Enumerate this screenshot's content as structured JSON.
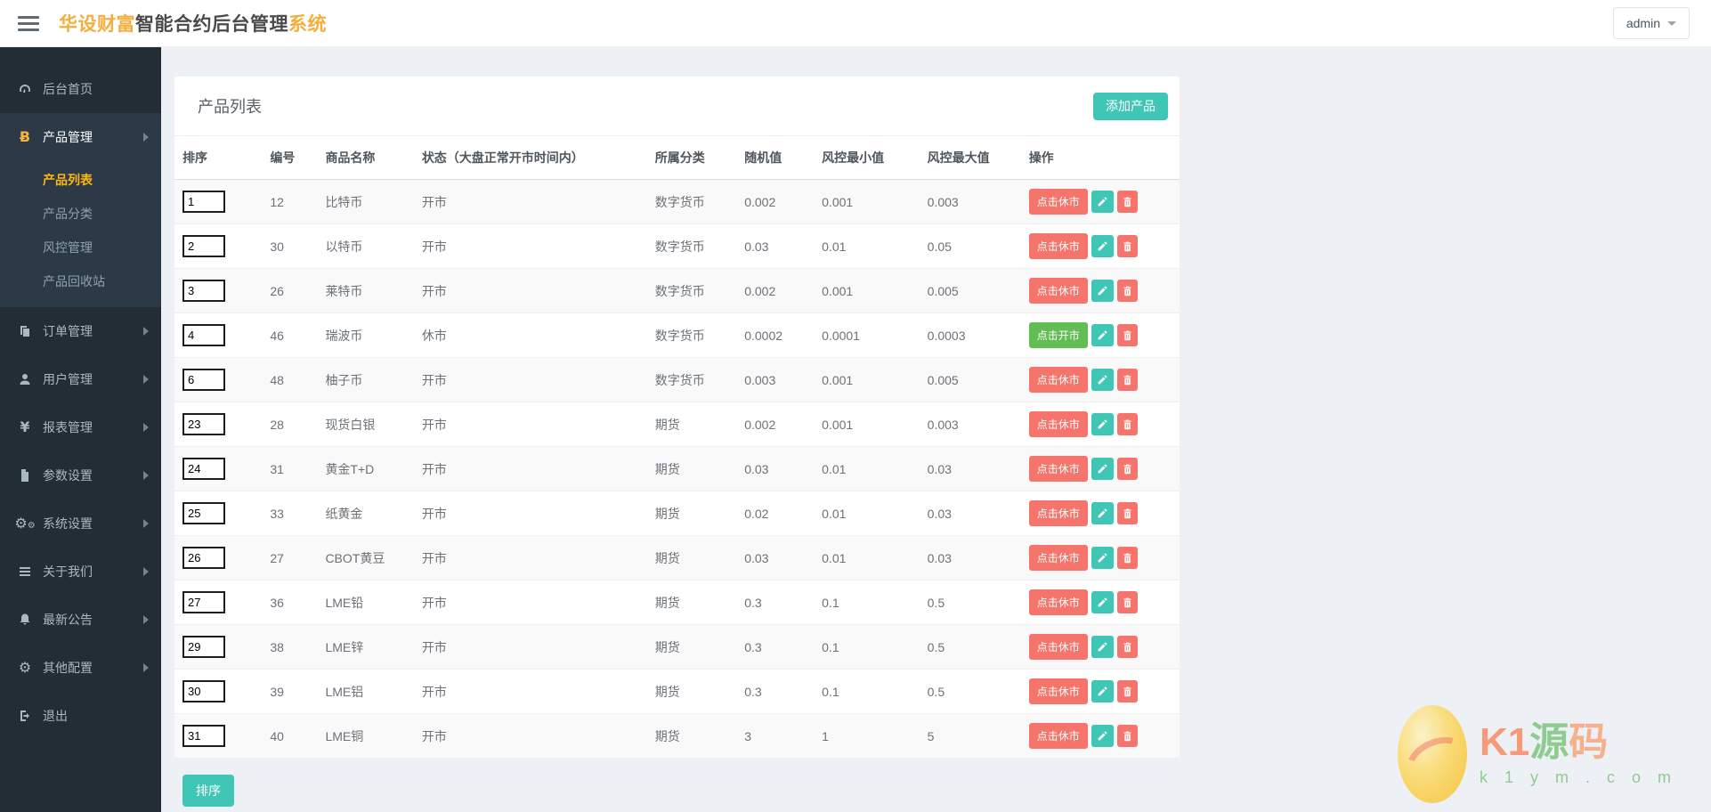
{
  "header": {
    "title_brand": "华设财富",
    "title_middle": "智能合约后台管理",
    "title_suffix": "系统",
    "user": "admin"
  },
  "sidebar": {
    "items": [
      {
        "label": "后台首页",
        "icon": "dashboard-icon",
        "arrow": false,
        "active": false
      },
      {
        "label": "产品管理",
        "icon": "bitcoin-icon",
        "arrow": true,
        "active": true,
        "children": [
          {
            "label": "产品列表",
            "active": true
          },
          {
            "label": "产品分类",
            "active": false
          },
          {
            "label": "风控管理",
            "active": false
          },
          {
            "label": "产品回收站",
            "active": false
          }
        ]
      },
      {
        "label": "订单管理",
        "icon": "orders-icon",
        "arrow": true,
        "active": false
      },
      {
        "label": "用户管理",
        "icon": "user-icon",
        "arrow": true,
        "active": false
      },
      {
        "label": "报表管理",
        "icon": "yen-icon",
        "arrow": true,
        "active": false
      },
      {
        "label": "参数设置",
        "icon": "file-icon",
        "arrow": true,
        "active": false
      },
      {
        "label": "系统设置",
        "icon": "gears-icon",
        "arrow": true,
        "active": false
      },
      {
        "label": "关于我们",
        "icon": "list-icon",
        "arrow": true,
        "active": false
      },
      {
        "label": "最新公告",
        "icon": "bell-icon",
        "arrow": true,
        "active": false
      },
      {
        "label": "其他配置",
        "icon": "gear-icon",
        "arrow": true,
        "active": false
      },
      {
        "label": "退出",
        "icon": "logout-icon",
        "arrow": false,
        "active": false
      }
    ]
  },
  "main": {
    "panel_title": "产品列表",
    "add_button": "添加产品",
    "sort_button": "排序",
    "table": {
      "headers": [
        "排序",
        "编号",
        "商品名称",
        "状态（大盘正常开市时间内）",
        "所属分类",
        "随机值",
        "风控最小值",
        "风控最大值",
        "操作"
      ],
      "rows": [
        {
          "sort": "1",
          "id": "12",
          "name": "比特币",
          "status": "开市",
          "category": "数字货币",
          "random": "0.002",
          "risk_min": "0.001",
          "risk_max": "0.003",
          "action": "点击休市",
          "action_type": "close"
        },
        {
          "sort": "2",
          "id": "30",
          "name": "以特币",
          "status": "开市",
          "category": "数字货币",
          "random": "0.03",
          "risk_min": "0.01",
          "risk_max": "0.05",
          "action": "点击休市",
          "action_type": "close"
        },
        {
          "sort": "3",
          "id": "26",
          "name": "莱特币",
          "status": "开市",
          "category": "数字货币",
          "random": "0.002",
          "risk_min": "0.001",
          "risk_max": "0.005",
          "action": "点击休市",
          "action_type": "close"
        },
        {
          "sort": "4",
          "id": "46",
          "name": "瑞波币",
          "status": "休市",
          "category": "数字货币",
          "random": "0.0002",
          "risk_min": "0.0001",
          "risk_max": "0.0003",
          "action": "点击开市",
          "action_type": "open"
        },
        {
          "sort": "6",
          "id": "48",
          "name": "柚子币",
          "status": "开市",
          "category": "数字货币",
          "random": "0.003",
          "risk_min": "0.001",
          "risk_max": "0.005",
          "action": "点击休市",
          "action_type": "close"
        },
        {
          "sort": "23",
          "id": "28",
          "name": "现货白银",
          "status": "开市",
          "category": "期货",
          "random": "0.002",
          "risk_min": "0.001",
          "risk_max": "0.003",
          "action": "点击休市",
          "action_type": "close"
        },
        {
          "sort": "24",
          "id": "31",
          "name": "黄金T+D",
          "status": "开市",
          "category": "期货",
          "random": "0.03",
          "risk_min": "0.01",
          "risk_max": "0.03",
          "action": "点击休市",
          "action_type": "close"
        },
        {
          "sort": "25",
          "id": "33",
          "name": "纸黄金",
          "status": "开市",
          "category": "期货",
          "random": "0.02",
          "risk_min": "0.01",
          "risk_max": "0.03",
          "action": "点击休市",
          "action_type": "close"
        },
        {
          "sort": "26",
          "id": "27",
          "name": "CBOT黄豆",
          "status": "开市",
          "category": "期货",
          "random": "0.03",
          "risk_min": "0.01",
          "risk_max": "0.03",
          "action": "点击休市",
          "action_type": "close"
        },
        {
          "sort": "27",
          "id": "36",
          "name": "LME铅",
          "status": "开市",
          "category": "期货",
          "random": "0.3",
          "risk_min": "0.1",
          "risk_max": "0.5",
          "action": "点击休市",
          "action_type": "close"
        },
        {
          "sort": "29",
          "id": "38",
          "name": "LME锌",
          "status": "开市",
          "category": "期货",
          "random": "0.3",
          "risk_min": "0.1",
          "risk_max": "0.5",
          "action": "点击休市",
          "action_type": "close"
        },
        {
          "sort": "30",
          "id": "39",
          "name": "LME铝",
          "status": "开市",
          "category": "期货",
          "random": "0.3",
          "risk_min": "0.1",
          "risk_max": "0.5",
          "action": "点击休市",
          "action_type": "close"
        },
        {
          "sort": "31",
          "id": "40",
          "name": "LME铜",
          "status": "开市",
          "category": "期货",
          "random": "3",
          "risk_min": "1",
          "risk_max": "5",
          "action": "点击休市",
          "action_type": "close"
        }
      ]
    }
  },
  "watermark": {
    "logo_k1": "K1",
    "logo_yuan": "源",
    "logo_ma": "码",
    "site": "k 1 y m . c o m"
  },
  "colors": {
    "teal": "#3fc6b4",
    "salmon": "#f5756c",
    "green": "#62bd54",
    "orange": "#f3ae3d",
    "sidebar_bg": "#222d35"
  }
}
